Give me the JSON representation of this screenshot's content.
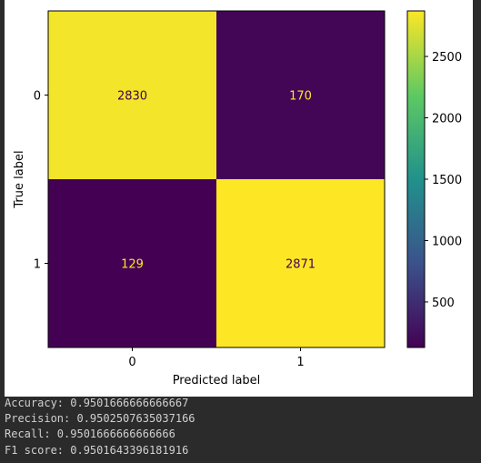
{
  "chart_data": {
    "type": "heatmap",
    "title": "",
    "xlabel": "Predicted label",
    "ylabel": "True label",
    "x_categories": [
      "0",
      "1"
    ],
    "y_categories": [
      "0",
      "1"
    ],
    "matrix": [
      [
        2830,
        170
      ],
      [
        129,
        2871
      ]
    ],
    "colormap": "viridis",
    "colorbar": {
      "min": 129,
      "max": 2871,
      "ticks": [
        500,
        1000,
        1500,
        2000,
        2500
      ]
    },
    "grid": false
  },
  "output": {
    "lines": [
      "Accuracy: 0.9501666666666667",
      "Precision: 0.9502507635037166",
      "Recall: 0.9501666666666666",
      "F1 score: 0.9501643396181916"
    ]
  },
  "colors": {
    "page_background": "#2b2b2b",
    "figure_background": "#ffffff",
    "output_text": "#d0d0d0",
    "cell_text_dark_bg": "#fde725",
    "cell_text_light_bg": "#440154"
  }
}
